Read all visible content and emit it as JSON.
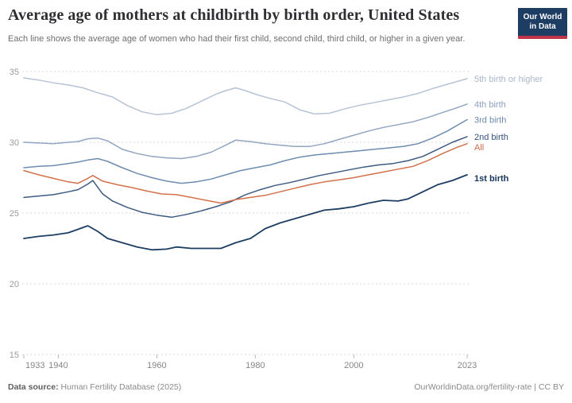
{
  "header": {
    "title": "Average age of mothers at childbirth by birth order, United States",
    "subtitle": "Each line shows the average age of women who had their first child, second child, third child, or higher in a given year.",
    "logo_line1": "Our World",
    "logo_line2": "in Data",
    "logo_bg_color": "#1d3d63",
    "logo_bar_color": "#c0344a"
  },
  "footer": {
    "source_label": "Data source:",
    "source_value": " Human Fertility Database (2025)",
    "link_text": "OurWorldinData.org/fertility-rate | CC BY"
  },
  "chart_data": {
    "type": "line",
    "title": "Average age of mothers at childbirth by birth order, United States",
    "xlabel": "",
    "ylabel": "",
    "unit": "years of age",
    "xlim": [
      1933,
      2023
    ],
    "ylim": [
      15,
      35
    ],
    "xticks": [
      1933,
      1940,
      1960,
      1980,
      2000,
      2023
    ],
    "yticks": [
      35,
      30,
      25,
      20,
      15
    ],
    "grid": "horizontal-dashed",
    "legend_position": "labels-at-line-ends-right",
    "grid_color": "#d9d9d9",
    "tick_color": "#bbbbbb",
    "ytick_label_color": "#9b9b9b",
    "xtick_label_color": "#868686",
    "series": [
      {
        "name": "5th birth or higher",
        "color": "#b7c3d5",
        "label_color": "#a9b8cd",
        "label_dy": 0,
        "label_bold": false,
        "points": [
          [
            1933,
            34.55
          ],
          [
            1936,
            34.4
          ],
          [
            1939,
            34.2
          ],
          [
            1942,
            34.05
          ],
          [
            1945,
            33.85
          ],
          [
            1948,
            33.5
          ],
          [
            1951,
            33.2
          ],
          [
            1954,
            32.6
          ],
          [
            1957,
            32.15
          ],
          [
            1960,
            31.95
          ],
          [
            1963,
            32.05
          ],
          [
            1966,
            32.4
          ],
          [
            1969,
            32.9
          ],
          [
            1972,
            33.4
          ],
          [
            1974,
            33.65
          ],
          [
            1976,
            33.85
          ],
          [
            1978,
            33.65
          ],
          [
            1980,
            33.4
          ],
          [
            1983,
            33.1
          ],
          [
            1986,
            32.85
          ],
          [
            1989,
            32.3
          ],
          [
            1992,
            32.0
          ],
          [
            1995,
            32.05
          ],
          [
            1998,
            32.35
          ],
          [
            2001,
            32.6
          ],
          [
            2004,
            32.8
          ],
          [
            2007,
            33.0
          ],
          [
            2010,
            33.2
          ],
          [
            2013,
            33.45
          ],
          [
            2016,
            33.8
          ],
          [
            2019,
            34.1
          ],
          [
            2021,
            34.3
          ],
          [
            2023,
            34.5
          ]
        ]
      },
      {
        "name": "4th birth",
        "color": "#92a5c0",
        "label_color": "#8ba0bd",
        "label_dy": 0,
        "label_bold": false,
        "points": [
          [
            1933,
            30.0
          ],
          [
            1936,
            29.95
          ],
          [
            1939,
            29.9
          ],
          [
            1942,
            30.0
          ],
          [
            1944,
            30.05
          ],
          [
            1946,
            30.25
          ],
          [
            1948,
            30.3
          ],
          [
            1950,
            30.1
          ],
          [
            1953,
            29.5
          ],
          [
            1956,
            29.2
          ],
          [
            1959,
            29.0
          ],
          [
            1962,
            28.9
          ],
          [
            1965,
            28.85
          ],
          [
            1968,
            29.0
          ],
          [
            1971,
            29.3
          ],
          [
            1974,
            29.8
          ],
          [
            1976,
            30.15
          ],
          [
            1979,
            30.05
          ],
          [
            1982,
            29.9
          ],
          [
            1985,
            29.8
          ],
          [
            1988,
            29.7
          ],
          [
            1991,
            29.7
          ],
          [
            1994,
            29.9
          ],
          [
            1997,
            30.2
          ],
          [
            2000,
            30.5
          ],
          [
            2003,
            30.8
          ],
          [
            2006,
            31.05
          ],
          [
            2009,
            31.25
          ],
          [
            2012,
            31.45
          ],
          [
            2015,
            31.75
          ],
          [
            2018,
            32.1
          ],
          [
            2021,
            32.45
          ],
          [
            2023,
            32.7
          ]
        ]
      },
      {
        "name": "3rd birth",
        "color": "#6d8cae",
        "label_color": "#6b89ac",
        "label_dy": 0,
        "label_bold": false,
        "points": [
          [
            1933,
            28.2
          ],
          [
            1936,
            28.3
          ],
          [
            1939,
            28.35
          ],
          [
            1942,
            28.5
          ],
          [
            1944,
            28.6
          ],
          [
            1946,
            28.75
          ],
          [
            1948,
            28.85
          ],
          [
            1950,
            28.65
          ],
          [
            1953,
            28.2
          ],
          [
            1956,
            27.8
          ],
          [
            1959,
            27.5
          ],
          [
            1962,
            27.25
          ],
          [
            1965,
            27.1
          ],
          [
            1968,
            27.2
          ],
          [
            1971,
            27.4
          ],
          [
            1974,
            27.7
          ],
          [
            1977,
            28.0
          ],
          [
            1980,
            28.2
          ],
          [
            1983,
            28.4
          ],
          [
            1986,
            28.7
          ],
          [
            1989,
            28.95
          ],
          [
            1992,
            29.1
          ],
          [
            1995,
            29.2
          ],
          [
            1998,
            29.3
          ],
          [
            2001,
            29.4
          ],
          [
            2004,
            29.5
          ],
          [
            2007,
            29.6
          ],
          [
            2010,
            29.7
          ],
          [
            2013,
            29.9
          ],
          [
            2016,
            30.3
          ],
          [
            2019,
            30.8
          ],
          [
            2021,
            31.2
          ],
          [
            2023,
            31.6
          ]
        ]
      },
      {
        "name": "2nd birth",
        "color": "#3d5a80",
        "label_color": "#355179",
        "label_dy": 0,
        "label_bold": false,
        "points": [
          [
            1933,
            26.1
          ],
          [
            1936,
            26.2
          ],
          [
            1939,
            26.3
          ],
          [
            1942,
            26.5
          ],
          [
            1944,
            26.65
          ],
          [
            1946,
            27.05
          ],
          [
            1947,
            27.3
          ],
          [
            1949,
            26.35
          ],
          [
            1951,
            25.85
          ],
          [
            1954,
            25.4
          ],
          [
            1957,
            25.05
          ],
          [
            1960,
            24.85
          ],
          [
            1963,
            24.7
          ],
          [
            1966,
            24.9
          ],
          [
            1969,
            25.15
          ],
          [
            1972,
            25.45
          ],
          [
            1975,
            25.8
          ],
          [
            1978,
            26.3
          ],
          [
            1981,
            26.65
          ],
          [
            1984,
            26.95
          ],
          [
            1987,
            27.15
          ],
          [
            1990,
            27.4
          ],
          [
            1993,
            27.65
          ],
          [
            1996,
            27.85
          ],
          [
            1999,
            28.05
          ],
          [
            2002,
            28.25
          ],
          [
            2005,
            28.4
          ],
          [
            2008,
            28.5
          ],
          [
            2011,
            28.7
          ],
          [
            2014,
            29.0
          ],
          [
            2017,
            29.5
          ],
          [
            2020,
            30.0
          ],
          [
            2023,
            30.4
          ]
        ]
      },
      {
        "name": "All",
        "color": "#d2714c",
        "label_color": "#d06b46",
        "label_dy": 4,
        "label_bold": false,
        "points": [
          [
            1933,
            28.0
          ],
          [
            1936,
            27.7
          ],
          [
            1939,
            27.45
          ],
          [
            1942,
            27.2
          ],
          [
            1944,
            27.1
          ],
          [
            1946,
            27.45
          ],
          [
            1947,
            27.65
          ],
          [
            1949,
            27.25
          ],
          [
            1952,
            27.0
          ],
          [
            1955,
            26.8
          ],
          [
            1958,
            26.55
          ],
          [
            1961,
            26.35
          ],
          [
            1964,
            26.3
          ],
          [
            1967,
            26.1
          ],
          [
            1970,
            25.9
          ],
          [
            1973,
            25.7
          ],
          [
            1976,
            25.95
          ],
          [
            1979,
            26.1
          ],
          [
            1982,
            26.25
          ],
          [
            1985,
            26.5
          ],
          [
            1988,
            26.75
          ],
          [
            1991,
            27.0
          ],
          [
            1994,
            27.2
          ],
          [
            1997,
            27.35
          ],
          [
            2000,
            27.5
          ],
          [
            2003,
            27.7
          ],
          [
            2006,
            27.9
          ],
          [
            2009,
            28.1
          ],
          [
            2012,
            28.3
          ],
          [
            2015,
            28.7
          ],
          [
            2018,
            29.2
          ],
          [
            2021,
            29.65
          ],
          [
            2023,
            29.9
          ]
        ]
      },
      {
        "name": "1st birth",
        "color": "#1d3d63",
        "label_color": "#16355c",
        "label_dy": 4,
        "label_bold": true,
        "points": [
          [
            1933,
            23.2
          ],
          [
            1936,
            23.35
          ],
          [
            1939,
            23.45
          ],
          [
            1942,
            23.6
          ],
          [
            1944,
            23.85
          ],
          [
            1946,
            24.1
          ],
          [
            1948,
            23.7
          ],
          [
            1950,
            23.2
          ],
          [
            1953,
            22.9
          ],
          [
            1956,
            22.6
          ],
          [
            1959,
            22.4
          ],
          [
            1962,
            22.45
          ],
          [
            1964,
            22.6
          ],
          [
            1967,
            22.5
          ],
          [
            1970,
            22.5
          ],
          [
            1973,
            22.5
          ],
          [
            1976,
            22.9
          ],
          [
            1979,
            23.2
          ],
          [
            1982,
            23.9
          ],
          [
            1985,
            24.3
          ],
          [
            1988,
            24.6
          ],
          [
            1991,
            24.9
          ],
          [
            1994,
            25.2
          ],
          [
            1997,
            25.3
          ],
          [
            2000,
            25.45
          ],
          [
            2003,
            25.7
          ],
          [
            2006,
            25.9
          ],
          [
            2009,
            25.85
          ],
          [
            2011,
            26.0
          ],
          [
            2014,
            26.5
          ],
          [
            2017,
            27.0
          ],
          [
            2020,
            27.3
          ],
          [
            2023,
            27.7
          ]
        ]
      }
    ]
  }
}
